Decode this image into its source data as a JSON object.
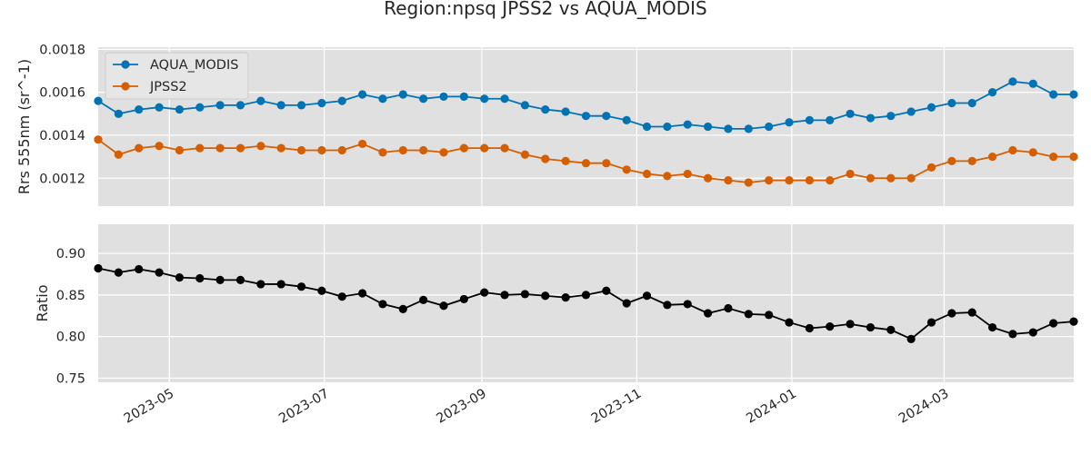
{
  "title": "Region:npsq JPSS2 vs AQUA_MODIS",
  "colors": {
    "aqua": "#0173b2",
    "jpss2": "#d55e00",
    "ratio": "#000000",
    "panel_bg": "#e0e0e0",
    "grid": "#ffffff"
  },
  "chart_data": [
    {
      "type": "line",
      "ylabel": "Rrs 555nm (sr^-1)",
      "ylim": [
        0.00107,
        0.00181
      ],
      "yticks": [
        0.0012,
        0.0014,
        0.0016,
        0.0018
      ],
      "ytick_labels": [
        "0.0012",
        "0.0014",
        "0.0016",
        "0.0018"
      ],
      "legend": "upper-left",
      "grid": true,
      "series": [
        {
          "name": "AQUA_MODIS",
          "color": "#0173b2",
          "values": [
            0.00156,
            0.0015,
            0.00152,
            0.00153,
            0.00152,
            0.00153,
            0.00154,
            0.00154,
            0.00156,
            0.00154,
            0.00154,
            0.00155,
            0.00156,
            0.00159,
            0.00157,
            0.00159,
            0.00157,
            0.00158,
            0.00158,
            0.00157,
            0.00157,
            0.00154,
            0.00152,
            0.00151,
            0.00149,
            0.00149,
            0.00147,
            0.00144,
            0.00144,
            0.00145,
            0.00144,
            0.00143,
            0.00143,
            0.00144,
            0.00146,
            0.00147,
            0.00147,
            0.0015,
            0.00148,
            0.00149,
            0.00151,
            0.00153,
            0.00155,
            0.00155,
            0.0016,
            0.00165,
            0.00164,
            0.00159,
            0.00159
          ]
        },
        {
          "name": "JPSS2",
          "color": "#d55e00",
          "values": [
            0.00138,
            0.00131,
            0.00134,
            0.00135,
            0.00133,
            0.00134,
            0.00134,
            0.00134,
            0.00135,
            0.00134,
            0.00133,
            0.00133,
            0.00133,
            0.00136,
            0.00132,
            0.00133,
            0.00133,
            0.00132,
            0.00134,
            0.00134,
            0.00134,
            0.00131,
            0.00129,
            0.00128,
            0.00127,
            0.00127,
            0.00124,
            0.00122,
            0.00121,
            0.00122,
            0.0012,
            0.00119,
            0.00118,
            0.00119,
            0.00119,
            0.00119,
            0.00119,
            0.00122,
            0.0012,
            0.0012,
            0.0012,
            0.00125,
            0.00128,
            0.00128,
            0.0013,
            0.00133,
            0.00132,
            0.0013,
            0.0013
          ]
        }
      ]
    },
    {
      "type": "line",
      "ylabel": "Ratio",
      "ylim": [
        0.745,
        0.935
      ],
      "yticks": [
        0.75,
        0.8,
        0.85,
        0.9
      ],
      "ytick_labels": [
        "0.75",
        "0.80",
        "0.85",
        "0.90"
      ],
      "grid": true,
      "series": [
        {
          "color": "#000000",
          "values": [
            0.882,
            0.877,
            0.881,
            0.877,
            0.871,
            0.87,
            0.868,
            0.868,
            0.863,
            0.863,
            0.86,
            0.855,
            0.848,
            0.852,
            0.839,
            0.833,
            0.844,
            0.837,
            0.845,
            0.853,
            0.85,
            0.851,
            0.849,
            0.847,
            0.85,
            0.855,
            0.84,
            0.849,
            0.838,
            0.839,
            0.828,
            0.834,
            0.827,
            0.826,
            0.817,
            0.81,
            0.812,
            0.815,
            0.811,
            0.808,
            0.797,
            0.817,
            0.828,
            0.829,
            0.811,
            0.803,
            0.805,
            0.816,
            0.818
          ]
        }
      ]
    }
  ],
  "x_dates": [
    "2023-04-03",
    "2023-04-11",
    "2023-04-19",
    "2023-04-27",
    "2023-05-05",
    "2023-05-13",
    "2023-05-21",
    "2023-05-29",
    "2023-06-06",
    "2023-06-14",
    "2023-06-22",
    "2023-06-30",
    "2023-07-08",
    "2023-07-16",
    "2023-07-24",
    "2023-08-01",
    "2023-08-09",
    "2023-08-17",
    "2023-08-25",
    "2023-09-02",
    "2023-09-10",
    "2023-09-18",
    "2023-09-26",
    "2023-10-04",
    "2023-10-12",
    "2023-10-20",
    "2023-10-28",
    "2023-11-05",
    "2023-11-13",
    "2023-11-21",
    "2023-11-29",
    "2023-12-07",
    "2023-12-15",
    "2023-12-23",
    "2023-12-31",
    "2024-01-08",
    "2024-01-16",
    "2024-01-24",
    "2024-02-01",
    "2024-02-09",
    "2024-02-17",
    "2024-02-25",
    "2024-03-04",
    "2024-03-12",
    "2024-03-20",
    "2024-03-28",
    "2024-04-05",
    "2024-04-13",
    "2024-04-21"
  ],
  "x_range": [
    "2023-04-03",
    "2024-04-21"
  ],
  "x_ticks": [
    "2023-05-01",
    "2023-07-01",
    "2023-09-01",
    "2023-11-01",
    "2024-01-01",
    "2024-03-01"
  ],
  "x_tick_labels": [
    "2023-05",
    "2023-07",
    "2023-09",
    "2023-11",
    "2024-01",
    "2024-03"
  ]
}
